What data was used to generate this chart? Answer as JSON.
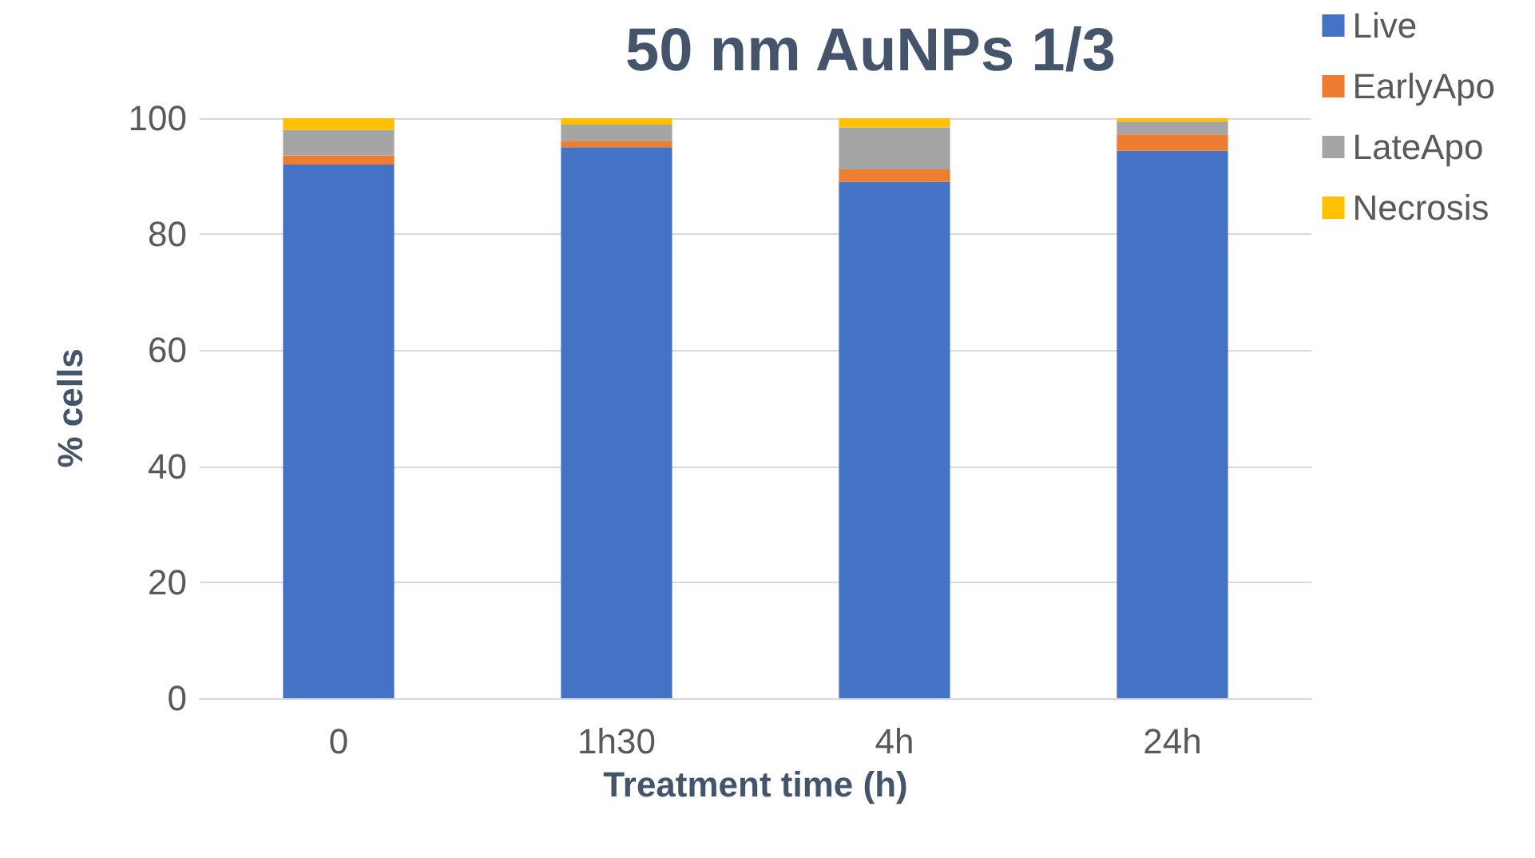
{
  "chart_data": {
    "type": "bar",
    "title": "50 nm AuNPs 1/3",
    "xlabel": "Treatment time (h)",
    "ylabel": "% cells",
    "categories": [
      "0",
      "1h30",
      "4h",
      "24h"
    ],
    "stacked": true,
    "ylim": [
      0,
      100
    ],
    "yticks": [
      0,
      20,
      40,
      60,
      80,
      100
    ],
    "grid": "y",
    "legend": "top right",
    "series": [
      {
        "name": "Live",
        "color": "#4472c4",
        "values": [
          92,
          95,
          89,
          94.4
        ]
      },
      {
        "name": "EarlyApo",
        "color": "#ed7d31",
        "values": [
          1.6,
          1.1,
          2.2,
          2.8
        ]
      },
      {
        "name": "LateApo",
        "color": "#a5a5a5",
        "values": [
          4.4,
          2.8,
          7.2,
          2.2
        ]
      },
      {
        "name": "Necrosis",
        "color": "#ffc000",
        "values": [
          2,
          1.1,
          1.7,
          0.6
        ]
      }
    ]
  }
}
